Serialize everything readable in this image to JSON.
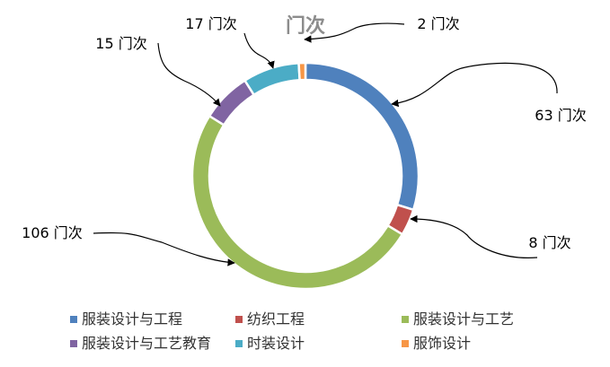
{
  "chart_data": {
    "type": "pie",
    "variant": "doughnut",
    "title": "门次",
    "labels": [
      "服装设计与工程",
      "纺织工程",
      "服装设计与工艺",
      "服装设计与工艺教育",
      "时装设计",
      "服饰设计"
    ],
    "values": [
      63,
      8,
      106,
      15,
      17,
      2
    ],
    "data_labels": [
      "63 门次",
      "8 门次",
      "106 门次",
      "15 门次",
      "17 门次",
      "2 门次"
    ],
    "colors": [
      "#4f81bd",
      "#c0504d",
      "#9bbb59",
      "#8064a2",
      "#4bacc6",
      "#f79646"
    ],
    "legend_position": "bottom"
  }
}
